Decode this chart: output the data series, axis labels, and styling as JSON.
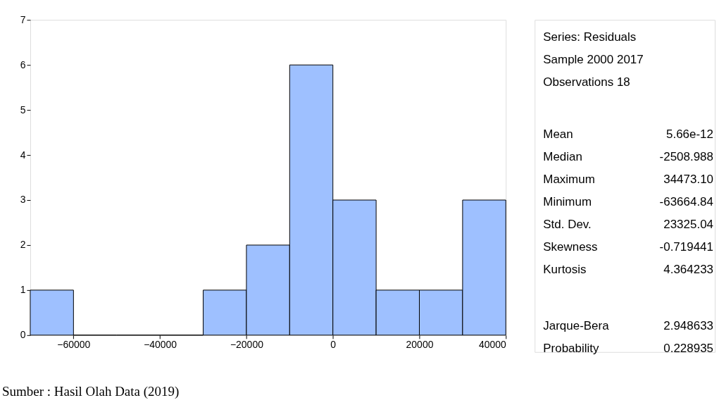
{
  "chart_data": {
    "type": "histogram",
    "bins": [
      -70000,
      -60000,
      -50000,
      -40000,
      -30000,
      -20000,
      -10000,
      0,
      10000,
      20000,
      30000,
      40000
    ],
    "values": [
      1,
      0,
      0,
      0,
      1,
      2,
      6,
      3,
      1,
      1,
      3
    ],
    "color": "#9ec0ff",
    "xlim": [
      -70000,
      40000
    ],
    "xticks": [
      -60000,
      -40000,
      -20000,
      0,
      20000,
      40000
    ],
    "ylim": [
      0,
      7
    ],
    "yticks": [
      0,
      1,
      2,
      3,
      4,
      5,
      6,
      7
    ],
    "grid": false,
    "annotations": [
      "Series: Residuals",
      "Sample 2000 2017",
      "Observations 18",
      "Mean",
      "5.66e-12",
      "Median",
      "-2508.988",
      "Maximum",
      "34473.10",
      "Minimum",
      "-63664.84",
      "Std. Dev.",
      "23325.04",
      "Skewness",
      "-0.719441",
      "Kurtosis",
      "4.364233",
      "Jarque-Bera",
      "2.948633",
      "Probability",
      "0.228935",
      "Sumber : Hasil Olah Data (2019)"
    ]
  }
}
